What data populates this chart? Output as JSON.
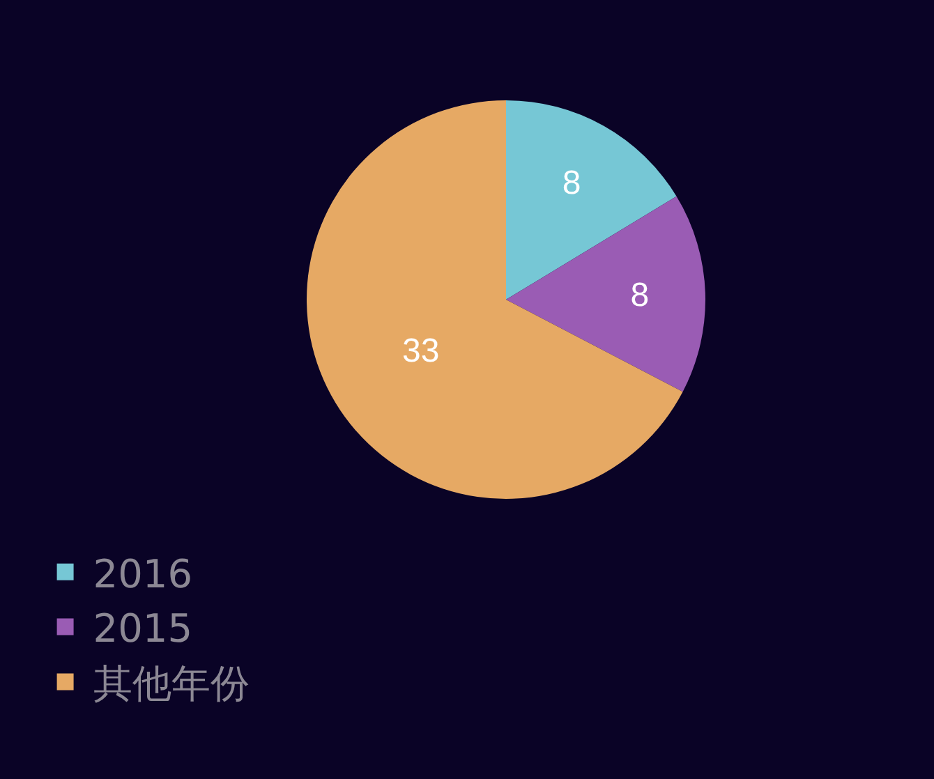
{
  "chart_data": {
    "type": "pie",
    "categories": [
      "2016",
      "2015",
      "其他年份"
    ],
    "values": [
      8,
      8,
      33
    ],
    "colors": [
      "#76c7d5",
      "#9a5cb4",
      "#e6a964"
    ],
    "data_labels": true,
    "legend": "bottom left"
  }
}
